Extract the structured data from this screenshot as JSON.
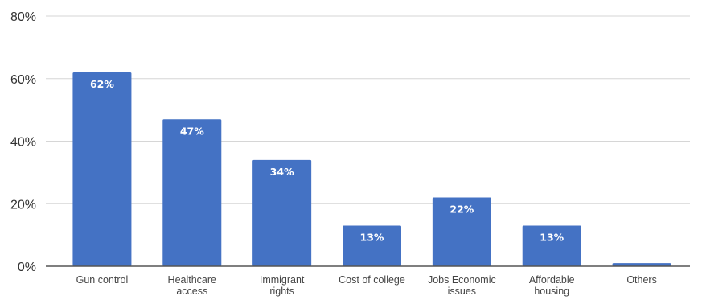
{
  "chart_data": {
    "type": "bar",
    "categories": [
      [
        "Gun control"
      ],
      [
        "Healthcare",
        "access"
      ],
      [
        "Immigrant",
        "rights"
      ],
      [
        "Cost of college"
      ],
      [
        "Jobs Economic",
        "issues"
      ],
      [
        "Affordable",
        "housing"
      ],
      [
        "Others"
      ]
    ],
    "values": [
      62,
      47,
      34,
      13,
      22,
      13,
      1
    ],
    "data_labels": [
      "62%",
      "47%",
      "34%",
      "13%",
      "22%",
      "13%",
      ""
    ],
    "yticks": [
      0,
      20,
      40,
      60,
      80
    ],
    "ytick_labels": [
      "0%",
      "20%",
      "40%",
      "60%",
      "80%"
    ],
    "ylim": [
      0,
      80
    ],
    "title": "",
    "xlabel": "",
    "ylabel": "",
    "grid": true,
    "legend": "none",
    "colors": {
      "bar": "#4472C4",
      "grid": "#d6d6d6",
      "baseline": "#555555",
      "label": "#ffffff"
    }
  }
}
